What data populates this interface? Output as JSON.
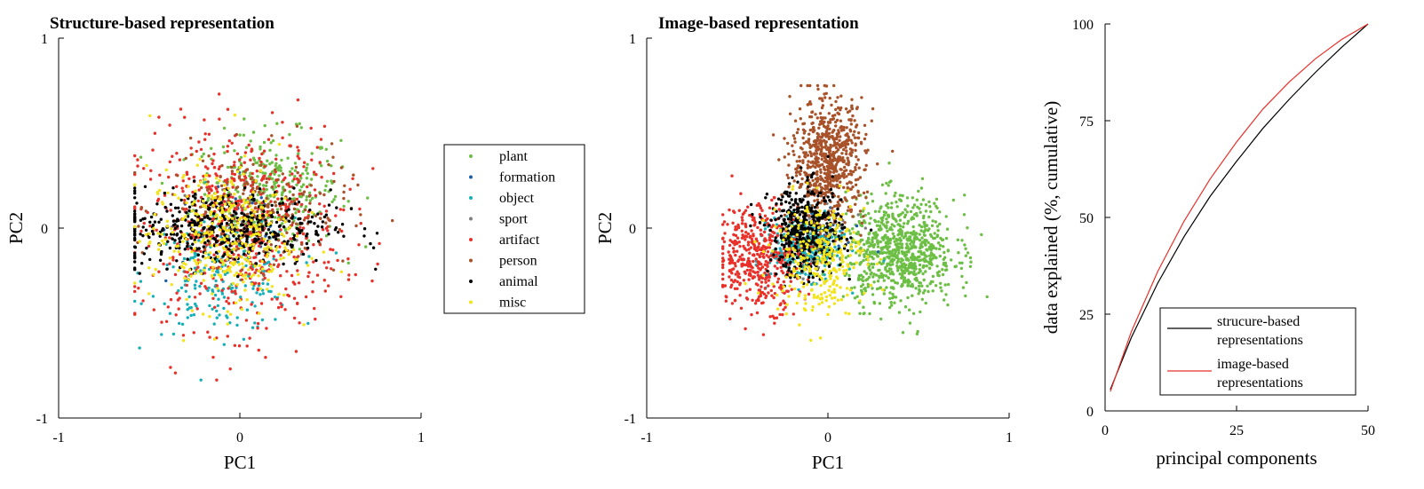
{
  "chart_data": [
    {
      "type": "scatter",
      "title": "Structure-based representation",
      "xlabel": "PC1",
      "ylabel": "PC2",
      "xlim": [
        -1,
        1
      ],
      "ylim": [
        -1,
        1
      ],
      "xticks": [
        "-1",
        "0",
        "1"
      ],
      "yticks": [
        "-1",
        "0",
        "1"
      ],
      "series": [
        {
          "name": "plant",
          "color": "#6cbf44",
          "center": [
            0.15,
            0.2
          ],
          "spread": [
            0.2,
            0.15
          ],
          "n": 320
        },
        {
          "name": "formation",
          "color": "#1f5fa8",
          "center": [
            -0.05,
            0.0
          ],
          "spread": [
            0.18,
            0.15
          ],
          "n": 40
        },
        {
          "name": "object",
          "color": "#17b0b8",
          "center": [
            -0.1,
            -0.25
          ],
          "spread": [
            0.2,
            0.15
          ],
          "n": 220
        },
        {
          "name": "sport",
          "color": "#7f7f7f",
          "center": [
            0.0,
            0.0
          ],
          "spread": [
            0.18,
            0.15
          ],
          "n": 40
        },
        {
          "name": "artifact",
          "color": "#e8312a",
          "center": [
            0.0,
            0.0
          ],
          "spread": [
            0.28,
            0.26
          ],
          "n": 650
        },
        {
          "name": "person",
          "color": "#a8522a",
          "center": [
            0.1,
            0.1
          ],
          "spread": [
            0.25,
            0.15
          ],
          "n": 220
        },
        {
          "name": "animal",
          "color": "#000000",
          "center": [
            -0.1,
            0.0
          ],
          "spread": [
            0.3,
            0.1
          ],
          "n": 480
        },
        {
          "name": "misc",
          "color": "#f2e31b",
          "center": [
            -0.1,
            -0.05
          ],
          "spread": [
            0.2,
            0.18
          ],
          "n": 380
        }
      ],
      "legend": "right"
    },
    {
      "type": "scatter",
      "title": "Image-based representation",
      "xlabel": "PC1",
      "ylabel": "PC2",
      "xlim": [
        -1,
        1
      ],
      "ylim": [
        -1,
        1
      ],
      "xticks": [
        "-1",
        "0",
        "1"
      ],
      "yticks": [
        "-1",
        "0",
        "1"
      ],
      "series": [
        {
          "name": "plant",
          "color": "#6cbf44",
          "center": [
            0.4,
            -0.12
          ],
          "spread": [
            0.15,
            0.14
          ],
          "n": 800
        },
        {
          "name": "formation",
          "color": "#1f5fa8",
          "center": [
            -0.05,
            -0.05
          ],
          "spread": [
            0.12,
            0.1
          ],
          "n": 40
        },
        {
          "name": "object",
          "color": "#17b0b8",
          "center": [
            -0.12,
            -0.1
          ],
          "spread": [
            0.1,
            0.08
          ],
          "n": 350
        },
        {
          "name": "sport",
          "color": "#7f7f7f",
          "center": [
            -0.05,
            -0.05
          ],
          "spread": [
            0.1,
            0.1
          ],
          "n": 40
        },
        {
          "name": "artifact",
          "color": "#e8312a",
          "center": [
            -0.38,
            -0.15
          ],
          "spread": [
            0.12,
            0.14
          ],
          "n": 450
        },
        {
          "name": "person",
          "color": "#a8522a",
          "center": [
            0.0,
            0.35
          ],
          "spread": [
            0.1,
            0.16
          ],
          "n": 700
        },
        {
          "name": "animal",
          "color": "#000000",
          "center": [
            -0.12,
            -0.02
          ],
          "spread": [
            0.1,
            0.12
          ],
          "n": 450
        },
        {
          "name": "misc",
          "color": "#f2e31b",
          "center": [
            -0.05,
            -0.15
          ],
          "spread": [
            0.13,
            0.15
          ],
          "n": 300
        }
      ]
    },
    {
      "type": "line",
      "xlabel": "principal components",
      "ylabel": "data explained (%, cumulative)",
      "xlim": [
        0,
        50
      ],
      "ylim": [
        0,
        100
      ],
      "xticks": [
        "0",
        "25",
        "50"
      ],
      "yticks": [
        "0",
        "25",
        "50",
        "75",
        "100"
      ],
      "legend": "bottom-right",
      "series": [
        {
          "name": "strucure-based representations",
          "legend_lines": [
            "strucure-based",
            "representations"
          ],
          "color": "#000000",
          "x": [
            1,
            5,
            10,
            15,
            20,
            25,
            30,
            35,
            40,
            45,
            50
          ],
          "y": [
            5.5,
            19,
            33,
            45,
            55.5,
            64.5,
            73,
            80.5,
            87.5,
            94,
            100
          ]
        },
        {
          "name": "image-based representations",
          "legend_lines": [
            "image-based",
            "representations"
          ],
          "color": "#e8312a",
          "x": [
            1,
            5,
            10,
            15,
            20,
            25,
            30,
            35,
            40,
            45,
            50
          ],
          "y": [
            5,
            20.5,
            36,
            49,
            60,
            69.5,
            78,
            85,
            91,
            96,
            100
          ]
        }
      ]
    }
  ]
}
